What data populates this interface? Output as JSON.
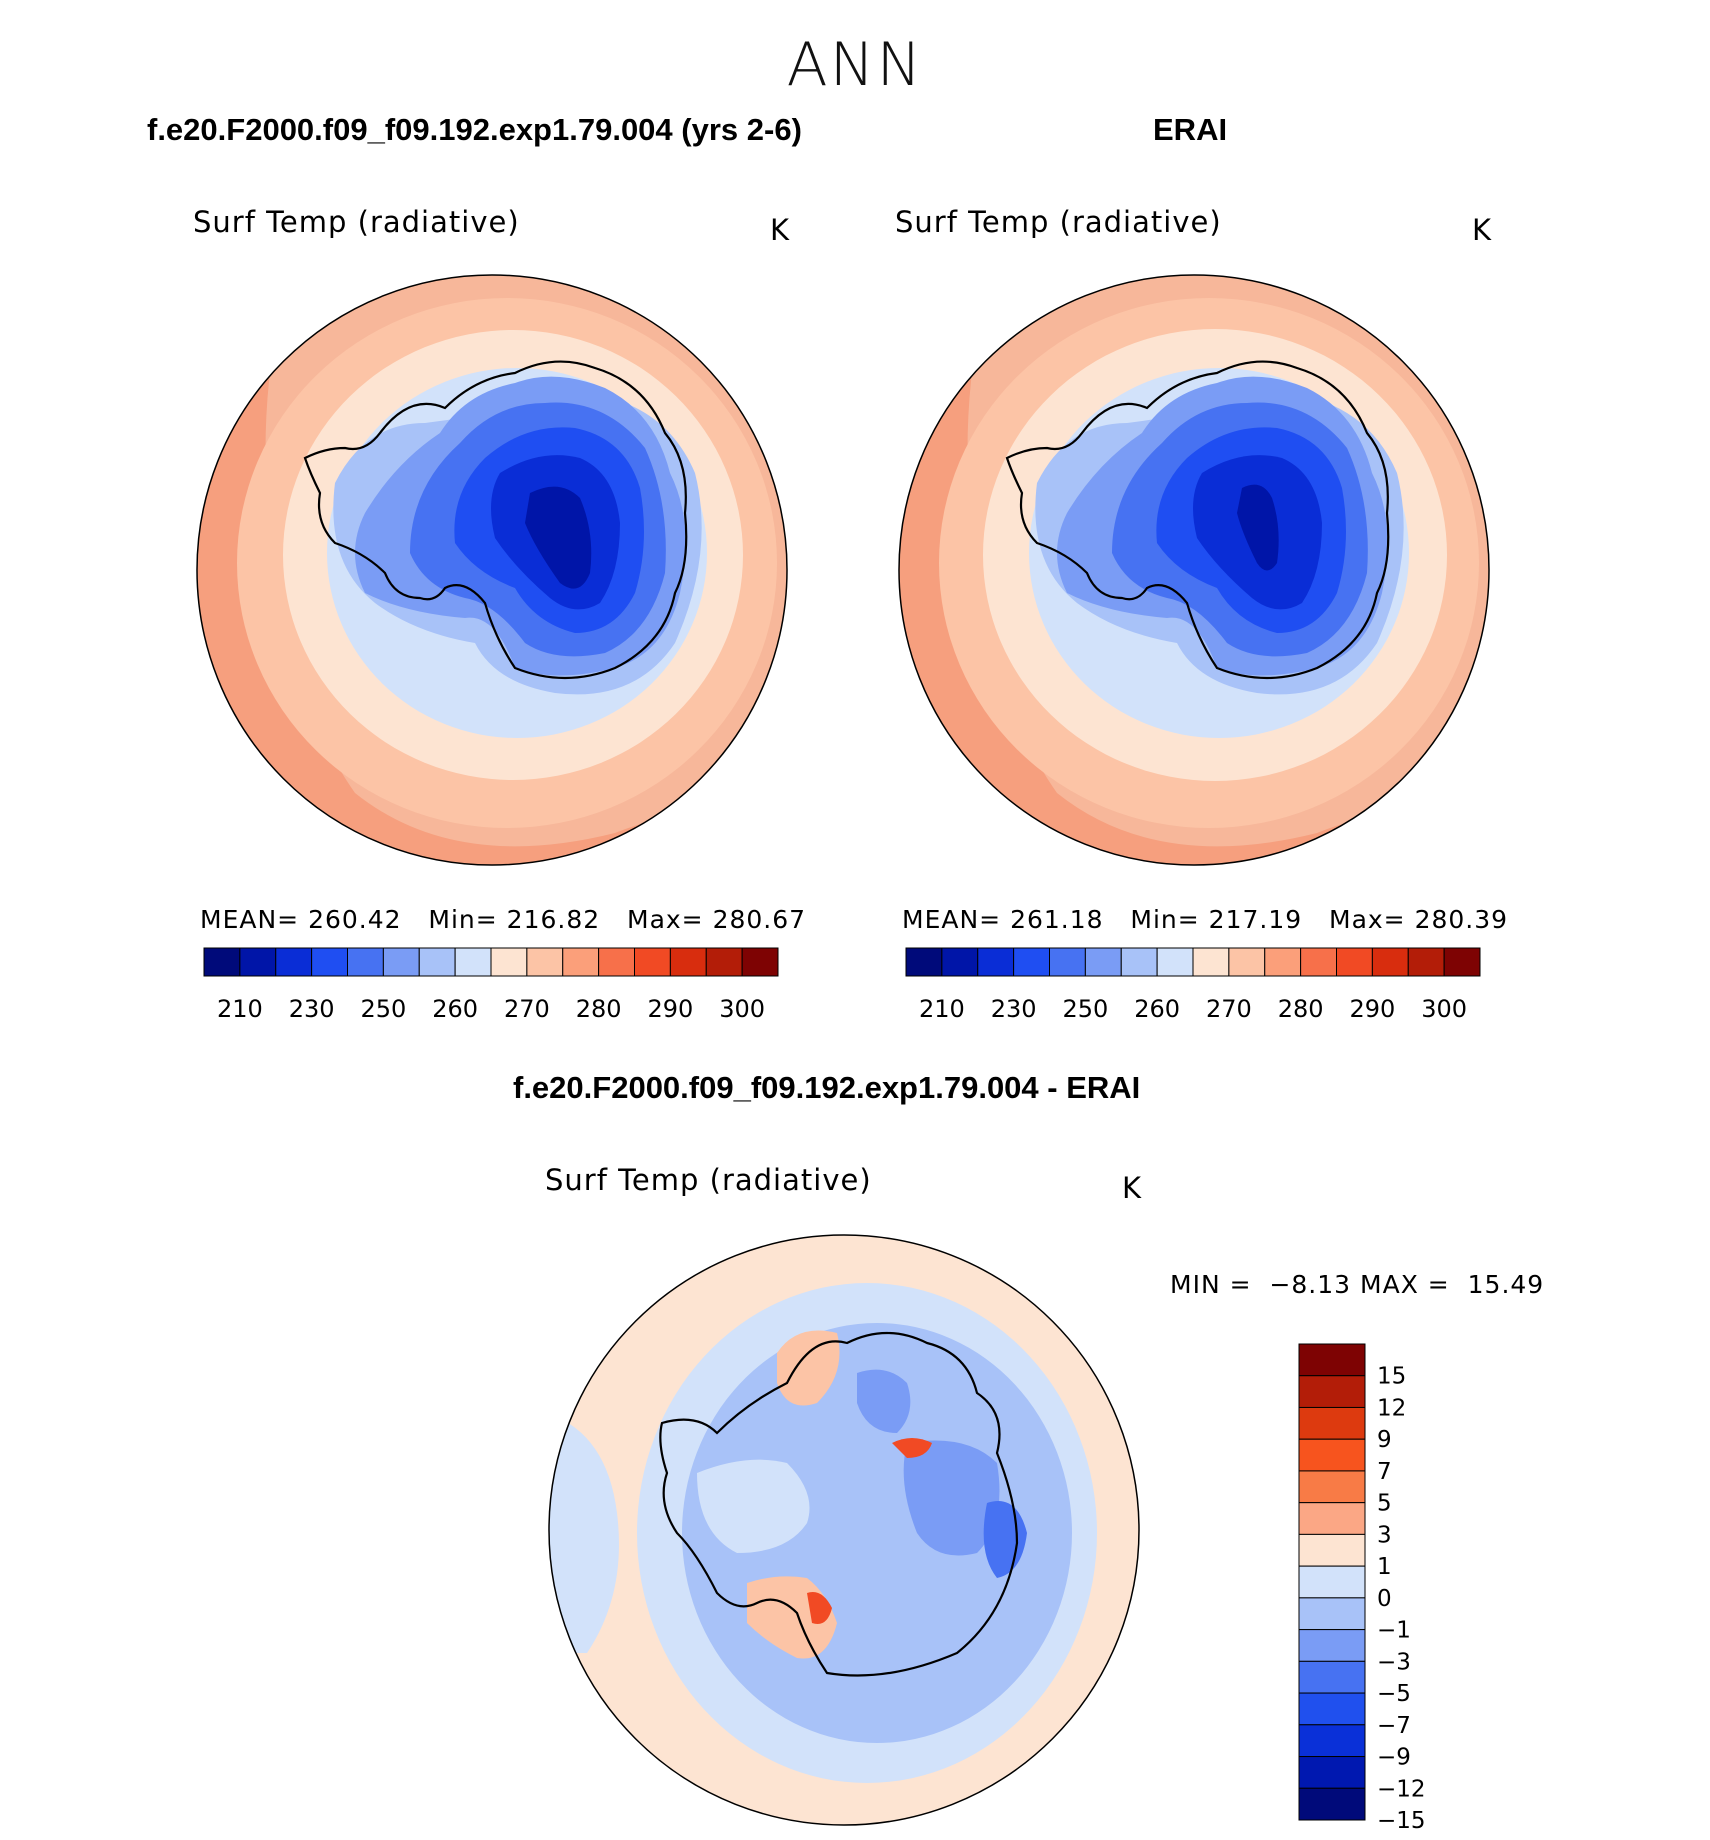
{
  "title": "ANN",
  "panels": [
    {
      "heading": "f.e20.F2000.f09_f09.192.exp1.79.004 (yrs 2-6)",
      "variable": "Surf Temp (radiative)",
      "units": "K",
      "stats": {
        "mean_label": "MEAN=",
        "mean": "260.42",
        "min_label": "Min=",
        "min": "216.82",
        "max_label": "Max=",
        "max": "280.67"
      }
    },
    {
      "heading": "ERAI",
      "variable": "Surf Temp (radiative)",
      "units": "K",
      "stats": {
        "mean_label": "MEAN=",
        "mean": "261.18",
        "min_label": "Min=",
        "min": "217.19",
        "max_label": "Max=",
        "max": "280.39"
      }
    },
    {
      "heading": "f.e20.F2000.f09_f09.192.exp1.79.004 - ERAI",
      "variable": "Surf Temp (radiative)",
      "units": "K",
      "stats": {
        "min_label": "MIN =",
        "min": "−8.13",
        "max_label": "MAX =",
        "max": "15.49"
      }
    }
  ],
  "colorbar_abs": {
    "colors": [
      "#000a7a",
      "#0015a8",
      "#0a2dd6",
      "#1f4ef2",
      "#4772f2",
      "#7a9cf5",
      "#a8c2f8",
      "#d2e2fa",
      "#fde4d2",
      "#fcc4a6",
      "#fb9f7a",
      "#f7704a",
      "#f14a24",
      "#d82d0e",
      "#b31d08",
      "#7e0303"
    ],
    "tick_labels": [
      "210",
      "230",
      "250",
      "260",
      "270",
      "280",
      "290",
      "300"
    ]
  },
  "colorbar_diff": {
    "colors": [
      "#7e0303",
      "#b31d08",
      "#dd3a0f",
      "#f7541e",
      "#f87b46",
      "#fba785",
      "#fde4d2",
      "#d2e2fa",
      "#a8c2f8",
      "#7a9cf5",
      "#4772f2",
      "#2050ee",
      "#0a30d8",
      "#0018b0",
      "#000a7a"
    ],
    "tick_labels": [
      "15",
      "12",
      "9",
      "7",
      "5",
      "3",
      "1",
      "0",
      "−1",
      "−3",
      "−5",
      "−7",
      "−9",
      "−12",
      "−15"
    ]
  }
}
